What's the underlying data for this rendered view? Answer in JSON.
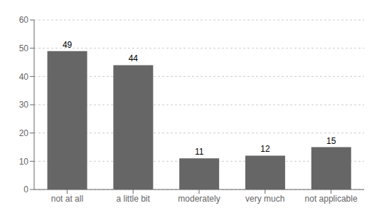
{
  "chart_data": {
    "type": "bar",
    "categories": [
      "not at all",
      "a little bit",
      "moderately",
      "very much",
      "not applicable"
    ],
    "values": [
      49,
      44,
      11,
      12,
      15
    ],
    "color": "#666666",
    "ylim": [
      0,
      60
    ],
    "yticks": [
      0,
      10,
      20,
      30,
      40,
      50,
      60
    ],
    "grid": true,
    "data_labels": true
  }
}
